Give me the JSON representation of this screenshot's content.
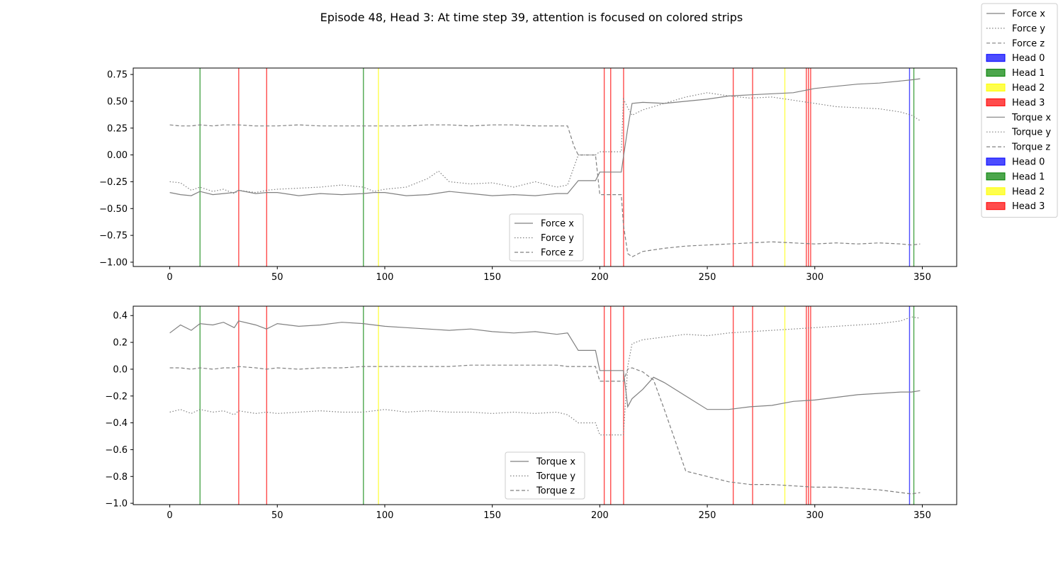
{
  "figure": {
    "title": "Episode 48, Head 3: At time step 39, attention is focused on colored strips"
  },
  "colors": {
    "series": "#808080",
    "head_0": "#0000ff",
    "head_1": "#008000",
    "head_2": "#ffff00",
    "head_3": "#ff0000"
  },
  "figure_legend": {
    "items": [
      {
        "label": "Force x",
        "kind": "line",
        "style": "solid"
      },
      {
        "label": "Force y",
        "kind": "line",
        "style": "dotted"
      },
      {
        "label": "Force z",
        "kind": "line",
        "style": "dashed"
      },
      {
        "label": "Head 0",
        "kind": "patch",
        "color": "#0000ff"
      },
      {
        "label": "Head 1",
        "kind": "patch",
        "color": "#008000"
      },
      {
        "label": "Head 2",
        "kind": "patch",
        "color": "#ffff00"
      },
      {
        "label": "Head 3",
        "kind": "patch",
        "color": "#ff0000"
      },
      {
        "label": "Torque x",
        "kind": "line",
        "style": "solid"
      },
      {
        "label": "Torque y",
        "kind": "line",
        "style": "dotted"
      },
      {
        "label": "Torque z",
        "kind": "line",
        "style": "dashed"
      },
      {
        "label": "Head 0",
        "kind": "patch",
        "color": "#0000ff"
      },
      {
        "label": "Head 1",
        "kind": "patch",
        "color": "#008000"
      },
      {
        "label": "Head 2",
        "kind": "patch",
        "color": "#ffff00"
      },
      {
        "label": "Head 3",
        "kind": "patch",
        "color": "#ff0000"
      }
    ]
  },
  "chart_data": [
    {
      "type": "line",
      "title": "",
      "xlabel": "",
      "ylabel": "",
      "xlim": [
        -17,
        366
      ],
      "ylim": [
        -1.04,
        0.81
      ],
      "xticks": [
        0,
        50,
        100,
        150,
        200,
        250,
        300,
        350
      ],
      "yticks": [
        -1.0,
        -0.75,
        -0.5,
        -0.25,
        0.0,
        0.25,
        0.5,
        0.75
      ],
      "ytick_labels": [
        "−1.00",
        "−0.75",
        "−0.50",
        "−0.25",
        "0.00",
        "0.25",
        "0.50",
        "0.75"
      ],
      "grid": false,
      "legend_position": "lower-center",
      "series": [
        {
          "name": "Force x",
          "style": "solid",
          "x": [
            0,
            5,
            10,
            14,
            20,
            25,
            30,
            32,
            40,
            45,
            50,
            60,
            70,
            80,
            90,
            95,
            100,
            110,
            120,
            130,
            140,
            150,
            160,
            170,
            180,
            185,
            190,
            198,
            200,
            205,
            210,
            211,
            213,
            215,
            220,
            230,
            240,
            250,
            260,
            270,
            280,
            290,
            300,
            310,
            320,
            330,
            340,
            345,
            349
          ],
          "y": [
            -0.35,
            -0.37,
            -0.38,
            -0.34,
            -0.37,
            -0.36,
            -0.35,
            -0.33,
            -0.36,
            -0.35,
            -0.35,
            -0.38,
            -0.36,
            -0.37,
            -0.36,
            -0.35,
            -0.35,
            -0.38,
            -0.37,
            -0.34,
            -0.36,
            -0.38,
            -0.37,
            -0.38,
            -0.36,
            -0.36,
            -0.24,
            -0.24,
            -0.16,
            -0.16,
            -0.16,
            -0.02,
            0.25,
            0.48,
            0.49,
            0.48,
            0.5,
            0.52,
            0.55,
            0.56,
            0.57,
            0.58,
            0.62,
            0.64,
            0.66,
            0.67,
            0.69,
            0.7,
            0.71
          ]
        },
        {
          "name": "Force y",
          "style": "dotted",
          "x": [
            0,
            5,
            10,
            14,
            20,
            25,
            30,
            32,
            40,
            45,
            50,
            60,
            70,
            80,
            90,
            95,
            100,
            110,
            120,
            125,
            130,
            140,
            150,
            160,
            170,
            180,
            185,
            190,
            198,
            200,
            205,
            210,
            211,
            213,
            215,
            220,
            230,
            240,
            250,
            260,
            270,
            280,
            290,
            300,
            310,
            320,
            330,
            340,
            345,
            349
          ],
          "y": [
            -0.25,
            -0.26,
            -0.33,
            -0.3,
            -0.34,
            -0.32,
            -0.36,
            -0.33,
            -0.35,
            -0.33,
            -0.32,
            -0.31,
            -0.3,
            -0.28,
            -0.3,
            -0.34,
            -0.32,
            -0.3,
            -0.22,
            -0.15,
            -0.25,
            -0.27,
            -0.26,
            -0.3,
            -0.25,
            -0.3,
            -0.28,
            0.0,
            0.0,
            0.03,
            0.03,
            0.03,
            0.52,
            0.44,
            0.37,
            0.42,
            0.48,
            0.54,
            0.58,
            0.55,
            0.53,
            0.54,
            0.51,
            0.48,
            0.45,
            0.44,
            0.43,
            0.4,
            0.37,
            0.32
          ]
        },
        {
          "name": "Force z",
          "style": "dashed",
          "x": [
            0,
            5,
            10,
            14,
            20,
            25,
            30,
            32,
            40,
            45,
            50,
            60,
            70,
            80,
            90,
            95,
            100,
            110,
            120,
            130,
            140,
            150,
            160,
            170,
            180,
            185,
            188,
            190,
            198,
            200,
            205,
            210,
            211,
            213,
            215,
            220,
            230,
            240,
            250,
            260,
            270,
            280,
            290,
            300,
            310,
            320,
            330,
            340,
            345,
            349
          ],
          "y": [
            0.28,
            0.27,
            0.27,
            0.28,
            0.27,
            0.28,
            0.28,
            0.28,
            0.27,
            0.27,
            0.27,
            0.28,
            0.27,
            0.27,
            0.27,
            0.27,
            0.27,
            0.27,
            0.28,
            0.28,
            0.27,
            0.28,
            0.28,
            0.27,
            0.27,
            0.27,
            0.08,
            0.0,
            0.0,
            -0.37,
            -0.37,
            -0.37,
            -0.65,
            -0.92,
            -0.95,
            -0.9,
            -0.87,
            -0.85,
            -0.84,
            -0.83,
            -0.82,
            -0.81,
            -0.82,
            -0.83,
            -0.82,
            -0.83,
            -0.82,
            -0.83,
            -0.84,
            -0.83
          ]
        }
      ],
      "attention_strips": [
        {
          "head": "Head 1",
          "x": 14
        },
        {
          "head": "Head 3",
          "x": 32
        },
        {
          "head": "Head 3",
          "x": 45
        },
        {
          "head": "Head 1",
          "x": 90
        },
        {
          "head": "Head 2",
          "x": 97
        },
        {
          "head": "Head 3",
          "x": 202
        },
        {
          "head": "Head 3",
          "x": 205
        },
        {
          "head": "Head 3",
          "x": 211
        },
        {
          "head": "Head 3",
          "x": 262
        },
        {
          "head": "Head 3",
          "x": 271
        },
        {
          "head": "Head 2",
          "x": 286
        },
        {
          "head": "Head 3",
          "x": 296
        },
        {
          "head": "Head 3",
          "x": 297
        },
        {
          "head": "Head 3",
          "x": 298
        },
        {
          "head": "Head 0",
          "x": 344
        },
        {
          "head": "Head 1",
          "x": 346
        }
      ]
    },
    {
      "type": "line",
      "title": "",
      "xlabel": "",
      "ylabel": "",
      "xlim": [
        -17,
        366
      ],
      "ylim": [
        -1.01,
        0.47
      ],
      "xticks": [
        0,
        50,
        100,
        150,
        200,
        250,
        300,
        350
      ],
      "yticks": [
        -1.0,
        -0.8,
        -0.6,
        -0.4,
        -0.2,
        0.0,
        0.2,
        0.4
      ],
      "ytick_labels": [
        "−1.0",
        "−0.8",
        "−0.6",
        "−0.4",
        "−0.2",
        "0.0",
        "0.2",
        "0.4"
      ],
      "grid": false,
      "legend_position": "lower-center",
      "series": [
        {
          "name": "Torque x",
          "style": "solid",
          "x": [
            0,
            5,
            10,
            14,
            20,
            25,
            30,
            32,
            40,
            45,
            50,
            60,
            70,
            80,
            90,
            95,
            100,
            110,
            120,
            130,
            140,
            150,
            160,
            170,
            180,
            185,
            190,
            198,
            200,
            205,
            210,
            211,
            213,
            215,
            220,
            225,
            230,
            240,
            250,
            260,
            270,
            280,
            290,
            300,
            310,
            320,
            330,
            340,
            345,
            349
          ],
          "y": [
            0.27,
            0.33,
            0.29,
            0.34,
            0.33,
            0.35,
            0.31,
            0.36,
            0.33,
            0.3,
            0.34,
            0.32,
            0.33,
            0.35,
            0.34,
            0.33,
            0.32,
            0.31,
            0.3,
            0.29,
            0.3,
            0.28,
            0.27,
            0.28,
            0.26,
            0.27,
            0.14,
            0.14,
            -0.01,
            -0.01,
            -0.01,
            -0.01,
            -0.28,
            -0.22,
            -0.15,
            -0.06,
            -0.1,
            -0.2,
            -0.3,
            -0.3,
            -0.28,
            -0.27,
            -0.24,
            -0.23,
            -0.21,
            -0.19,
            -0.18,
            -0.17,
            -0.17,
            -0.16
          ]
        },
        {
          "name": "Torque y",
          "style": "dotted",
          "x": [
            0,
            5,
            10,
            14,
            20,
            25,
            30,
            32,
            40,
            45,
            50,
            60,
            70,
            80,
            90,
            95,
            100,
            110,
            120,
            130,
            140,
            150,
            160,
            170,
            180,
            185,
            190,
            198,
            200,
            205,
            210,
            211,
            213,
            215,
            220,
            230,
            240,
            250,
            260,
            270,
            280,
            290,
            300,
            310,
            320,
            330,
            340,
            345,
            349
          ],
          "y": [
            -0.32,
            -0.3,
            -0.33,
            -0.3,
            -0.32,
            -0.31,
            -0.34,
            -0.31,
            -0.33,
            -0.32,
            -0.33,
            -0.32,
            -0.31,
            -0.32,
            -0.32,
            -0.31,
            -0.3,
            -0.32,
            -0.31,
            -0.32,
            -0.32,
            -0.33,
            -0.32,
            -0.33,
            -0.32,
            -0.34,
            -0.4,
            -0.4,
            -0.49,
            -0.49,
            -0.49,
            -0.49,
            0.02,
            0.19,
            0.22,
            0.24,
            0.26,
            0.25,
            0.27,
            0.28,
            0.29,
            0.3,
            0.31,
            0.32,
            0.33,
            0.34,
            0.36,
            0.39,
            0.38
          ]
        },
        {
          "name": "Torque z",
          "style": "dashed",
          "x": [
            0,
            5,
            10,
            14,
            20,
            25,
            30,
            32,
            40,
            45,
            50,
            60,
            70,
            80,
            90,
            95,
            100,
            110,
            120,
            130,
            140,
            150,
            160,
            170,
            180,
            185,
            190,
            198,
            200,
            205,
            210,
            211,
            213,
            215,
            220,
            225,
            230,
            240,
            250,
            260,
            270,
            280,
            290,
            300,
            310,
            320,
            330,
            340,
            345,
            349
          ],
          "y": [
            0.01,
            0.01,
            0.0,
            0.01,
            0.0,
            0.01,
            0.01,
            0.02,
            0.01,
            0.0,
            0.01,
            0.0,
            0.01,
            0.01,
            0.02,
            0.02,
            0.02,
            0.02,
            0.02,
            0.02,
            0.03,
            0.03,
            0.03,
            0.03,
            0.03,
            0.02,
            0.02,
            0.02,
            -0.09,
            -0.09,
            -0.09,
            -0.09,
            0.0,
            0.01,
            -0.02,
            -0.08,
            -0.3,
            -0.76,
            -0.8,
            -0.84,
            -0.86,
            -0.86,
            -0.87,
            -0.88,
            -0.88,
            -0.89,
            -0.9,
            -0.92,
            -0.93,
            -0.92
          ]
        }
      ],
      "attention_strips": [
        {
          "head": "Head 1",
          "x": 14
        },
        {
          "head": "Head 3",
          "x": 32
        },
        {
          "head": "Head 3",
          "x": 45
        },
        {
          "head": "Head 1",
          "x": 90
        },
        {
          "head": "Head 2",
          "x": 97
        },
        {
          "head": "Head 3",
          "x": 202
        },
        {
          "head": "Head 3",
          "x": 205
        },
        {
          "head": "Head 3",
          "x": 211
        },
        {
          "head": "Head 3",
          "x": 262
        },
        {
          "head": "Head 3",
          "x": 271
        },
        {
          "head": "Head 2",
          "x": 286
        },
        {
          "head": "Head 3",
          "x": 296
        },
        {
          "head": "Head 3",
          "x": 297
        },
        {
          "head": "Head 3",
          "x": 298
        },
        {
          "head": "Head 0",
          "x": 344
        },
        {
          "head": "Head 1",
          "x": 346
        }
      ]
    }
  ]
}
